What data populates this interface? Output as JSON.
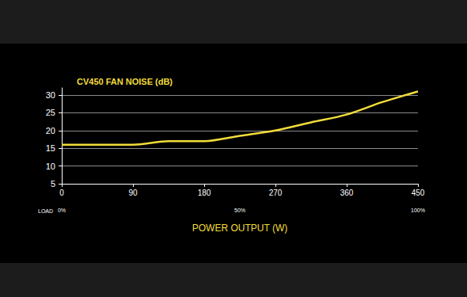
{
  "chart_data": {
    "type": "line",
    "title": "CV450 FAN NOISE (dB)",
    "x_label": "POWER OUTPUT (W)",
    "x": [
      0,
      90,
      135,
      180,
      225,
      270,
      315,
      360,
      405,
      450
    ],
    "values": [
      16,
      16,
      17,
      17,
      18.5,
      20,
      22.3,
      24.5,
      28,
      31
    ],
    "color": "#f2dc3a",
    "xlim": [
      0,
      450
    ],
    "xticks": [
      0,
      90,
      180,
      270,
      360,
      450
    ],
    "ylim": [
      5,
      32
    ],
    "yticks": [
      5,
      10,
      15,
      20,
      25,
      30
    ],
    "grid": true,
    "load_axis": {
      "label": "LOAD",
      "ticks": [
        {
          "value": 0,
          "label": "0%"
        },
        {
          "value": 225,
          "label": "50%"
        },
        {
          "value": 450,
          "label": "100%"
        }
      ]
    }
  }
}
